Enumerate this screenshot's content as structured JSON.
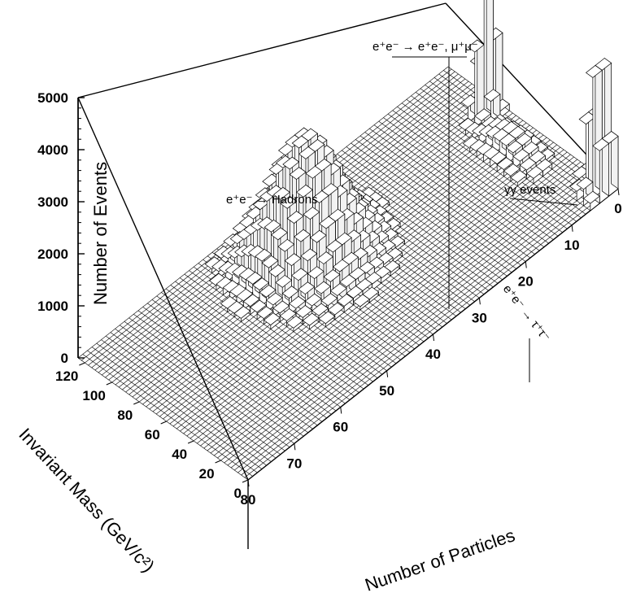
{
  "chart_data": {
    "type": "bar3d",
    "ylabel": "Number of Events",
    "xlabel": "Number of Particles",
    "zlabel": "Invariant Mass (GeV/c²)",
    "events_ticks": [
      "0",
      "1000",
      "2000",
      "3000",
      "4000",
      "5000"
    ],
    "particles_ticks": [
      "0",
      "10",
      "20",
      "30",
      "40",
      "50",
      "60",
      "70",
      "80"
    ],
    "mass_ticks": [
      "0",
      "20",
      "40",
      "60",
      "80",
      "100",
      "120"
    ],
    "annotations": {
      "hadrons": "e⁺e⁻ → Hadrons",
      "leptons": "e⁺e⁻ → e⁺e⁻, μ⁺μ⁻",
      "gamma": "γγ events",
      "tau": "e⁺e⁻ → τ⁺τ⁻"
    },
    "peaks": [
      {
        "label": "e⁺e⁻ → Hadrons",
        "particles": 42,
        "mass": 88,
        "events": 2300
      },
      {
        "label": "e⁺e⁻ → e⁺e⁻, μ⁺μ⁻",
        "particles": 3,
        "mass": 88,
        "events": 4900
      },
      {
        "label": "γγ events",
        "particles": 2,
        "mass": 8,
        "events": 3000
      },
      {
        "label": "e⁺e⁻ → τ⁺τ⁻",
        "particles": 6,
        "mass": 60,
        "events": 400
      }
    ]
  }
}
